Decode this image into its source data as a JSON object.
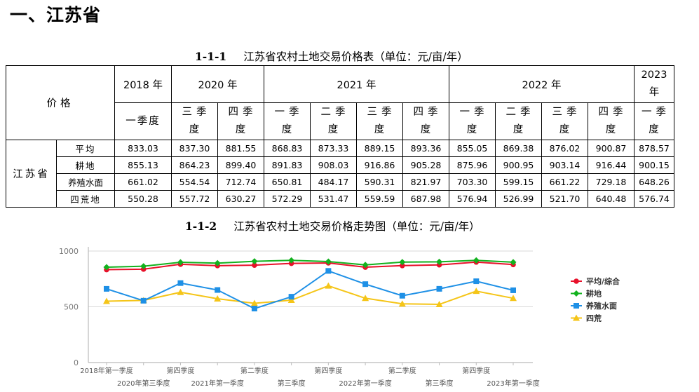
{
  "heading": "一、江苏省",
  "table_caption": {
    "number": "1-1-1",
    "title": "江苏省农村土地交易价格表（单位：元/亩/年）"
  },
  "table": {
    "corner": "价格",
    "years": [
      "2018 年",
      "2020 年",
      "2021 年",
      "2022 年",
      "2023 年"
    ],
    "quarters": [
      "一季度",
      "三季度",
      "四季度",
      "一季度",
      "二季度",
      "三季度",
      "四季度",
      "一季度",
      "二季度",
      "三季度",
      "四季度",
      "一季度"
    ],
    "region": "江苏省",
    "rows": [
      {
        "label": "平均",
        "values": [
          "833.03",
          "837.30",
          "881.55",
          "868.83",
          "873.33",
          "889.15",
          "893.36",
          "855.05",
          "869.38",
          "876.02",
          "900.87",
          "878.57"
        ]
      },
      {
        "label": "耕地",
        "values": [
          "855.13",
          "864.23",
          "899.40",
          "891.83",
          "908.03",
          "916.86",
          "905.28",
          "875.96",
          "900.95",
          "903.14",
          "916.44",
          "900.15"
        ]
      },
      {
        "label": "养殖水面",
        "values": [
          "661.02",
          "554.54",
          "712.74",
          "650.81",
          "484.17",
          "590.31",
          "821.97",
          "703.30",
          "599.15",
          "661.22",
          "729.18",
          "648.26"
        ]
      },
      {
        "label": "四荒地",
        "values": [
          "550.28",
          "557.72",
          "630.27",
          "572.29",
          "531.47",
          "559.59",
          "687.98",
          "576.94",
          "526.99",
          "521.70",
          "640.48",
          "576.74"
        ]
      }
    ]
  },
  "chart_caption": {
    "number": "1-1-2",
    "title": "江苏省农村土地交易价格走势图（单位：元/亩/年）"
  },
  "chart_data": {
    "type": "line",
    "x": [
      "2018年第一季度",
      "2020年第三季度",
      "第四季度",
      "2021年第一季度",
      "第二季度",
      "第三季度",
      "第四季度",
      "2022年第一季度",
      "第二季度",
      "第三季度",
      "第四季度",
      "2023年第一季度"
    ],
    "ylim": [
      0,
      1000
    ],
    "yticks": [
      "0",
      "500",
      "1000"
    ],
    "grid": true,
    "legend_position": "right",
    "series": [
      {
        "name": "平均/综合",
        "color": "#e8102a",
        "marker": "circle",
        "values": [
          833.03,
          837.3,
          881.55,
          868.83,
          873.33,
          889.15,
          893.36,
          855.05,
          869.38,
          876.02,
          900.87,
          878.57
        ]
      },
      {
        "name": "耕地",
        "color": "#12b21e",
        "marker": "diamond",
        "values": [
          855.13,
          864.23,
          899.4,
          891.83,
          908.03,
          916.86,
          905.28,
          875.96,
          900.95,
          903.14,
          916.44,
          900.15
        ]
      },
      {
        "name": "养殖水面",
        "color": "#1e90e6",
        "marker": "square",
        "values": [
          661.02,
          554.54,
          712.74,
          650.81,
          484.17,
          590.31,
          821.97,
          703.3,
          599.15,
          661.22,
          729.18,
          648.26
        ]
      },
      {
        "name": "四荒",
        "color": "#f5c518",
        "marker": "triangle",
        "values": [
          550.28,
          557.72,
          630.27,
          572.29,
          531.47,
          559.59,
          687.98,
          576.94,
          526.99,
          521.7,
          640.48,
          576.74
        ]
      }
    ]
  }
}
